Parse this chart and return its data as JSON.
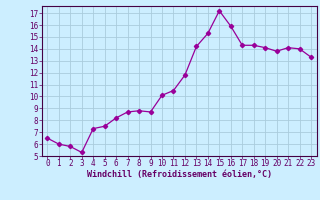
{
  "x": [
    0,
    1,
    2,
    3,
    4,
    5,
    6,
    7,
    8,
    9,
    10,
    11,
    12,
    13,
    14,
    15,
    16,
    17,
    18,
    19,
    20,
    21,
    22,
    23
  ],
  "y": [
    6.5,
    6.0,
    5.8,
    5.3,
    7.3,
    7.5,
    8.2,
    8.7,
    8.8,
    8.7,
    10.1,
    10.5,
    11.8,
    14.2,
    15.3,
    17.2,
    15.9,
    14.3,
    14.3,
    14.1,
    13.8,
    14.1,
    14.0,
    13.3
  ],
  "line_color": "#990099",
  "marker": "D",
  "marker_size": 2.2,
  "bg_color": "#cceeff",
  "grid_color": "#aaccdd",
  "axis_color": "#440044",
  "tick_color": "#660066",
  "xlabel": "Windchill (Refroidissement éolien,°C)",
  "xlabel_color": "#660066",
  "ylabel_ticks": [
    5,
    6,
    7,
    8,
    9,
    10,
    11,
    12,
    13,
    14,
    15,
    16,
    17
  ],
  "xlim": [
    -0.5,
    23.5
  ],
  "ylim": [
    5,
    17.6
  ],
  "tick_fontsize": 5.5,
  "xlabel_fontsize": 6.0
}
